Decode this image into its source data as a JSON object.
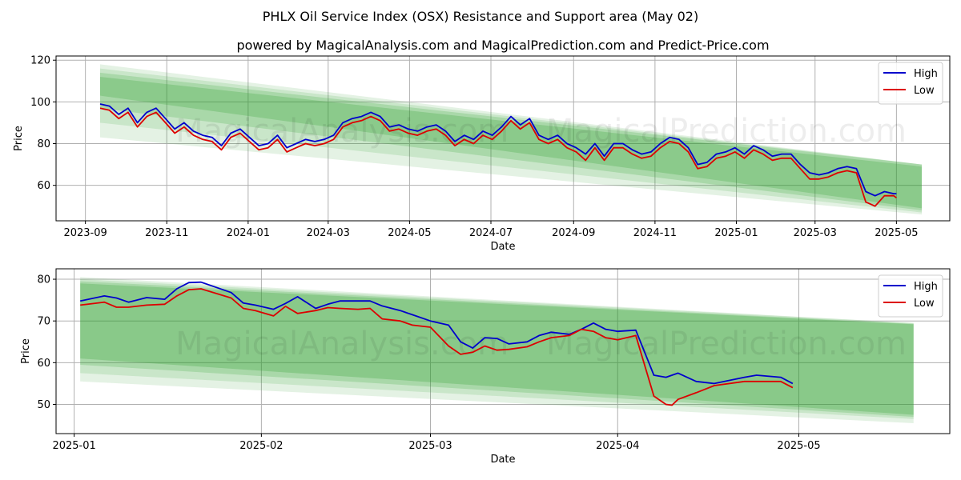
{
  "figure": {
    "title": "PHLX Oil Service Index (OSX) Resistance and Support area (May 02)",
    "subtitle": "powered by MagicalAnalysis.com and MagicalPrediction.com and Predict-Price.com",
    "watermark_left": "MagicalAnalysis.com",
    "watermark_right": "MagicalPrediction.com"
  },
  "colors": {
    "high": "#0000cc",
    "low": "#dd0000",
    "band": "#2e9e2e",
    "grid": "#b0b0b0"
  },
  "chart_data": [
    {
      "type": "line",
      "xlabel": "Date",
      "ylabel": "Price",
      "x_domain": [
        "2023-08-10",
        "2025-06-10"
      ],
      "ylim": [
        43,
        122
      ],
      "x_ticks": [
        "2023-09",
        "2023-11",
        "2024-01",
        "2024-03",
        "2024-05",
        "2024-07",
        "2024-09",
        "2024-11",
        "2025-01",
        "2025-03",
        "2025-05"
      ],
      "y_ticks": [
        60,
        80,
        100,
        120
      ],
      "grid": true,
      "legend": "top-right",
      "bands": [
        {
          "x": [
            "2023-09-12",
            "2025-05-20"
          ],
          "upper": [
            118,
            70
          ],
          "lower": [
            83,
            46
          ],
          "opacity": 0.13
        },
        {
          "x": [
            "2023-09-12",
            "2025-05-20"
          ],
          "upper": [
            116,
            70
          ],
          "lower": [
            90,
            47
          ],
          "opacity": 0.15
        },
        {
          "x": [
            "2023-09-12",
            "2025-05-20"
          ],
          "upper": [
            114,
            70
          ],
          "lower": [
            97,
            48
          ],
          "opacity": 0.2
        },
        {
          "x": [
            "2023-09-12",
            "2025-05-20"
          ],
          "upper": [
            112,
            69
          ],
          "lower": [
            103,
            49
          ],
          "opacity": 0.24
        }
      ],
      "series": [
        {
          "name": "High",
          "x": [
            "2023-09-12",
            "2023-09-19",
            "2023-09-26",
            "2023-10-03",
            "2023-10-10",
            "2023-10-17",
            "2023-10-24",
            "2023-10-31",
            "2023-11-07",
            "2023-11-14",
            "2023-11-21",
            "2023-11-28",
            "2023-12-05",
            "2023-12-12",
            "2023-12-19",
            "2023-12-26",
            "2024-01-02",
            "2024-01-09",
            "2024-01-16",
            "2024-01-23",
            "2024-01-30",
            "2024-02-06",
            "2024-02-13",
            "2024-02-20",
            "2024-02-27",
            "2024-03-05",
            "2024-03-12",
            "2024-03-19",
            "2024-03-26",
            "2024-04-02",
            "2024-04-09",
            "2024-04-16",
            "2024-04-23",
            "2024-04-30",
            "2024-05-07",
            "2024-05-14",
            "2024-05-21",
            "2024-05-28",
            "2024-06-04",
            "2024-06-11",
            "2024-06-18",
            "2024-06-25",
            "2024-07-02",
            "2024-07-09",
            "2024-07-16",
            "2024-07-23",
            "2024-07-30",
            "2024-08-06",
            "2024-08-13",
            "2024-08-20",
            "2024-08-27",
            "2024-09-03",
            "2024-09-10",
            "2024-09-17",
            "2024-09-24",
            "2024-10-01",
            "2024-10-08",
            "2024-10-15",
            "2024-10-22",
            "2024-10-29",
            "2024-11-05",
            "2024-11-12",
            "2024-11-19",
            "2024-11-26",
            "2024-12-03",
            "2024-12-10",
            "2024-12-17",
            "2024-12-24",
            "2024-12-31",
            "2025-01-07",
            "2025-01-14",
            "2025-01-21",
            "2025-01-28",
            "2025-02-04",
            "2025-02-11",
            "2025-02-18",
            "2025-02-25",
            "2025-03-04",
            "2025-03-11",
            "2025-03-18",
            "2025-03-25",
            "2025-04-01",
            "2025-04-08",
            "2025-04-15",
            "2025-04-22",
            "2025-04-29",
            "2025-05-01"
          ],
          "values": [
            99,
            98,
            94,
            97,
            90,
            95,
            97,
            92,
            87,
            90,
            86,
            84,
            83,
            79,
            85,
            87,
            83,
            79,
            80,
            84,
            78,
            80,
            82,
            81,
            82,
            84,
            90,
            92,
            93,
            95,
            93,
            88,
            89,
            87,
            86,
            88,
            89,
            86,
            81,
            84,
            82,
            86,
            84,
            88,
            93,
            89,
            92,
            84,
            82,
            84,
            80,
            78,
            75,
            80,
            74,
            80,
            80,
            77,
            75,
            76,
            80,
            83,
            82,
            78,
            70,
            71,
            75,
            76,
            78,
            75,
            79,
            77,
            74,
            75,
            75,
            70,
            66,
            65,
            66,
            68,
            69,
            68,
            57,
            55,
            57,
            56,
            56
          ]
        },
        {
          "name": "Low",
          "x": [
            "2023-09-12",
            "2023-09-19",
            "2023-09-26",
            "2023-10-03",
            "2023-10-10",
            "2023-10-17",
            "2023-10-24",
            "2023-10-31",
            "2023-11-07",
            "2023-11-14",
            "2023-11-21",
            "2023-11-28",
            "2023-12-05",
            "2023-12-12",
            "2023-12-19",
            "2023-12-26",
            "2024-01-02",
            "2024-01-09",
            "2024-01-16",
            "2024-01-23",
            "2024-01-30",
            "2024-02-06",
            "2024-02-13",
            "2024-02-20",
            "2024-02-27",
            "2024-03-05",
            "2024-03-12",
            "2024-03-19",
            "2024-03-26",
            "2024-04-02",
            "2024-04-09",
            "2024-04-16",
            "2024-04-23",
            "2024-04-30",
            "2024-05-07",
            "2024-05-14",
            "2024-05-21",
            "2024-05-28",
            "2024-06-04",
            "2024-06-11",
            "2024-06-18",
            "2024-06-25",
            "2024-07-02",
            "2024-07-09",
            "2024-07-16",
            "2024-07-23",
            "2024-07-30",
            "2024-08-06",
            "2024-08-13",
            "2024-08-20",
            "2024-08-27",
            "2024-09-03",
            "2024-09-10",
            "2024-09-17",
            "2024-09-24",
            "2024-10-01",
            "2024-10-08",
            "2024-10-15",
            "2024-10-22",
            "2024-10-29",
            "2024-11-05",
            "2024-11-12",
            "2024-11-19",
            "2024-11-26",
            "2024-12-03",
            "2024-12-10",
            "2024-12-17",
            "2024-12-24",
            "2024-12-31",
            "2025-01-07",
            "2025-01-14",
            "2025-01-21",
            "2025-01-28",
            "2025-02-04",
            "2025-02-11",
            "2025-02-18",
            "2025-02-25",
            "2025-03-04",
            "2025-03-11",
            "2025-03-18",
            "2025-03-25",
            "2025-04-01",
            "2025-04-08",
            "2025-04-15",
            "2025-04-22",
            "2025-04-29",
            "2025-05-01"
          ],
          "values": [
            97,
            96,
            92,
            95,
            88,
            93,
            95,
            90,
            85,
            88,
            84,
            82,
            81,
            77,
            83,
            85,
            81,
            77,
            78,
            82,
            76,
            78,
            80,
            79,
            80,
            82,
            88,
            90,
            91,
            93,
            91,
            86,
            87,
            85,
            84,
            86,
            87,
            84,
            79,
            82,
            80,
            84,
            82,
            86,
            91,
            87,
            90,
            82,
            80,
            82,
            78,
            76,
            72,
            78,
            72,
            78,
            78,
            75,
            73,
            74,
            78,
            81,
            80,
            76,
            68,
            69,
            73,
            74,
            76,
            73,
            77,
            75,
            72,
            73,
            73,
            68,
            63,
            63,
            64,
            66,
            67,
            66,
            52,
            50,
            55,
            55,
            54
          ]
        }
      ]
    },
    {
      "type": "line",
      "xlabel": "Date",
      "ylabel": "Price",
      "x_domain": [
        "2024-12-29",
        "2025-05-26"
      ],
      "ylim": [
        43,
        82.5
      ],
      "x_ticks": [
        "2025-01",
        "2025-02",
        "2025-03",
        "2025-04",
        "2025-05"
      ],
      "y_ticks": [
        50,
        60,
        70,
        80
      ],
      "grid": true,
      "legend": "top-right",
      "bands": [
        {
          "x": [
            "2025-01-02",
            "2025-05-20"
          ],
          "upper": [
            80.5,
            69.5
          ],
          "lower": [
            55.5,
            45.5
          ],
          "opacity": 0.13
        },
        {
          "x": [
            "2025-01-02",
            "2025-05-20"
          ],
          "upper": [
            80,
            69.5
          ],
          "lower": [
            57.5,
            46.5
          ],
          "opacity": 0.15
        },
        {
          "x": [
            "2025-01-02",
            "2025-05-20"
          ],
          "upper": [
            79.5,
            69.3
          ],
          "lower": [
            59.5,
            47
          ],
          "opacity": 0.2
        },
        {
          "x": [
            "2025-01-02",
            "2025-05-20"
          ],
          "upper": [
            79,
            69.2
          ],
          "lower": [
            61,
            47.5
          ],
          "opacity": 0.26
        }
      ],
      "series": [
        {
          "name": "High",
          "x": [
            "2025-01-02",
            "2025-01-06",
            "2025-01-08",
            "2025-01-10",
            "2025-01-13",
            "2025-01-16",
            "2025-01-18",
            "2025-01-20",
            "2025-01-22",
            "2025-01-27",
            "2025-01-29",
            "2025-01-31",
            "2025-02-03",
            "2025-02-05",
            "2025-02-07",
            "2025-02-10",
            "2025-02-12",
            "2025-02-14",
            "2025-02-17",
            "2025-02-19",
            "2025-02-21",
            "2025-02-24",
            "2025-02-26",
            "2025-03-01",
            "2025-03-04",
            "2025-03-06",
            "2025-03-08",
            "2025-03-10",
            "2025-03-12",
            "2025-03-14",
            "2025-03-17",
            "2025-03-19",
            "2025-03-21",
            "2025-03-24",
            "2025-03-26",
            "2025-03-28",
            "2025-03-30",
            "2025-04-01",
            "2025-04-04",
            "2025-04-07",
            "2025-04-09",
            "2025-04-10",
            "2025-04-11",
            "2025-04-14",
            "2025-04-17",
            "2025-04-22",
            "2025-04-24",
            "2025-04-28",
            "2025-04-30"
          ],
          "values": [
            74.8,
            76,
            75.5,
            74.5,
            75.6,
            75.2,
            77.7,
            79.2,
            79.3,
            76.8,
            74.3,
            73.8,
            72.8,
            74.2,
            75.8,
            73,
            74,
            74.8,
            74.8,
            74.8,
            73.6,
            72.5,
            71.5,
            70,
            69,
            65,
            63.5,
            66,
            65.8,
            64.5,
            65,
            66.5,
            67.3,
            66.8,
            68,
            69.5,
            68,
            67.5,
            67.8,
            57,
            56.5,
            57,
            57.5,
            55.5,
            55,
            56.5,
            57,
            56.5,
            55
          ]
        },
        {
          "name": "Low",
          "x": [
            "2025-01-02",
            "2025-01-06",
            "2025-01-08",
            "2025-01-10",
            "2025-01-13",
            "2025-01-16",
            "2025-01-18",
            "2025-01-20",
            "2025-01-22",
            "2025-01-27",
            "2025-01-29",
            "2025-01-31",
            "2025-02-03",
            "2025-02-05",
            "2025-02-07",
            "2025-02-10",
            "2025-02-12",
            "2025-02-14",
            "2025-02-17",
            "2025-02-19",
            "2025-02-21",
            "2025-02-24",
            "2025-02-26",
            "2025-03-01",
            "2025-03-04",
            "2025-03-06",
            "2025-03-08",
            "2025-03-10",
            "2025-03-12",
            "2025-03-14",
            "2025-03-17",
            "2025-03-19",
            "2025-03-21",
            "2025-03-24",
            "2025-03-26",
            "2025-03-28",
            "2025-03-30",
            "2025-04-01",
            "2025-04-04",
            "2025-04-07",
            "2025-04-09",
            "2025-04-10",
            "2025-04-11",
            "2025-04-14",
            "2025-04-17",
            "2025-04-22",
            "2025-04-24",
            "2025-04-28",
            "2025-04-30"
          ],
          "values": [
            73.8,
            74.5,
            73.3,
            73.3,
            73.8,
            74,
            76,
            77.5,
            77.7,
            75.5,
            73,
            72.5,
            71.2,
            73.5,
            71.8,
            72.5,
            73.2,
            73,
            72.8,
            73,
            70.5,
            70,
            69,
            68.5,
            64,
            62,
            62.5,
            64,
            63,
            63.2,
            63.8,
            65,
            66,
            66.5,
            68,
            67.5,
            66,
            65.5,
            66.5,
            52,
            50,
            49.8,
            51.2,
            52.8,
            54.5,
            55.5,
            55.5,
            55.5,
            54
          ]
        }
      ]
    }
  ]
}
